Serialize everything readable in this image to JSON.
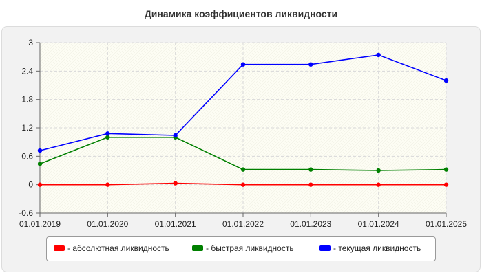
{
  "chart_data": {
    "type": "line",
    "title": "Динамика коэффициентов ликвидности",
    "categories": [
      "01.01.2019",
      "01.01.2020",
      "01.01.2021",
      "01.01.2022",
      "01.01.2023",
      "01.01.2024",
      "01.01.2025"
    ],
    "y_ticks": [
      "3",
      "2.4",
      "1.8",
      "1.2",
      "0.6",
      "0",
      "-0.6"
    ],
    "ylim": [
      -0.6,
      3
    ],
    "grid": true,
    "legend_position": "bottom",
    "series": [
      {
        "name": "- абсолютная ликвидность",
        "color": "#ff0000",
        "values": [
          0.0,
          0.0,
          0.03,
          0.0,
          0.0,
          0.0,
          0.0
        ]
      },
      {
        "name": "- быстрая ликвидность",
        "color": "#008000",
        "values": [
          0.44,
          1.0,
          1.0,
          0.32,
          0.32,
          0.3,
          0.32
        ]
      },
      {
        "name": "- текущая ликвидность",
        "color": "#0000ff",
        "values": [
          0.72,
          1.08,
          1.04,
          2.54,
          2.54,
          2.74,
          2.2
        ]
      }
    ]
  }
}
